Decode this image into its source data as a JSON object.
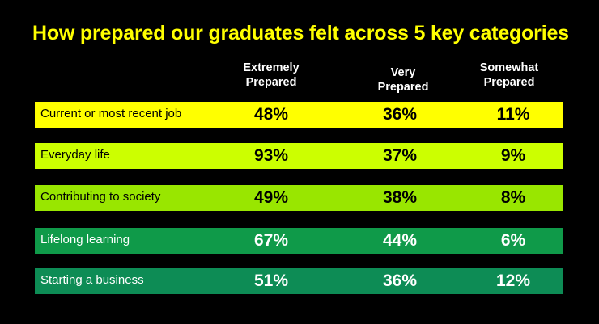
{
  "chart_data": {
    "type": "table",
    "title": "How prepared our graduates felt across 5 key categories",
    "columns": [
      {
        "line1": "Extremely",
        "line2": "Prepared"
      },
      {
        "line1": "Very",
        "line2": "Prepared"
      },
      {
        "line1": "Somewhat",
        "line2": "Prepared"
      }
    ],
    "rows": [
      {
        "label": "Current or most recent job",
        "values": [
          "48%",
          "36%",
          "11%"
        ],
        "bg": "#ffff00",
        "fg": "#000000"
      },
      {
        "label": "Everyday life",
        "values": [
          "93%",
          "37%",
          "9%"
        ],
        "bg": "#ccff00",
        "fg": "#000000"
      },
      {
        "label": "Contributing to society",
        "values": [
          "49%",
          "38%",
          "8%"
        ],
        "bg": "#99e600",
        "fg": "#000000"
      },
      {
        "label": "Lifelong learning",
        "values": [
          "67%",
          "44%",
          "6%"
        ],
        "bg": "#0f9a49",
        "fg": "#ffffff"
      },
      {
        "label": "Starting a business",
        "values": [
          "51%",
          "36%",
          "12%"
        ],
        "bg": "#0d8c55",
        "fg": "#ffffff"
      }
    ]
  }
}
